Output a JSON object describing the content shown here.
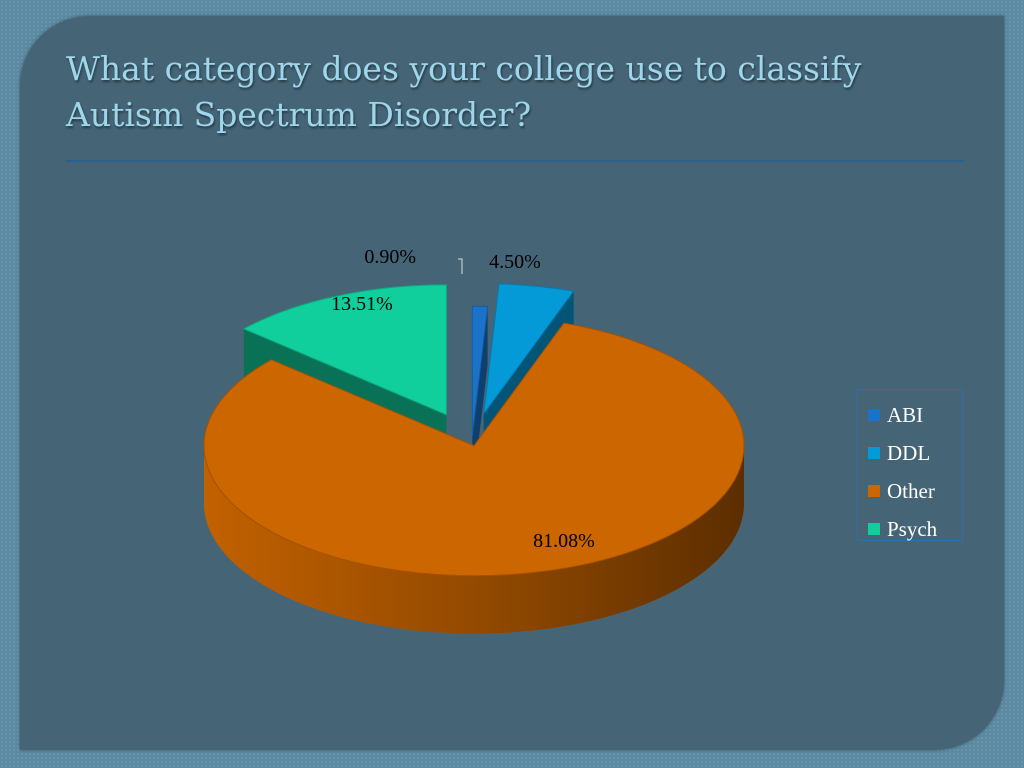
{
  "slide": {
    "title": "What category does your college use to classify Autism Spectrum Disorder?"
  },
  "chart_data": {
    "type": "pie",
    "title": "",
    "categories": [
      "ABI",
      "DDL",
      "Other",
      "Psych"
    ],
    "values": [
      0.9,
      4.5,
      81.08,
      13.51
    ],
    "labels": [
      "0.90%",
      "4.50%",
      "81.08%",
      "13.51%"
    ],
    "colors": [
      "#1a73c8",
      "#049ad8",
      "#cc6600",
      "#10cf9c"
    ],
    "legend": "right",
    "style": "3d-exploded"
  }
}
